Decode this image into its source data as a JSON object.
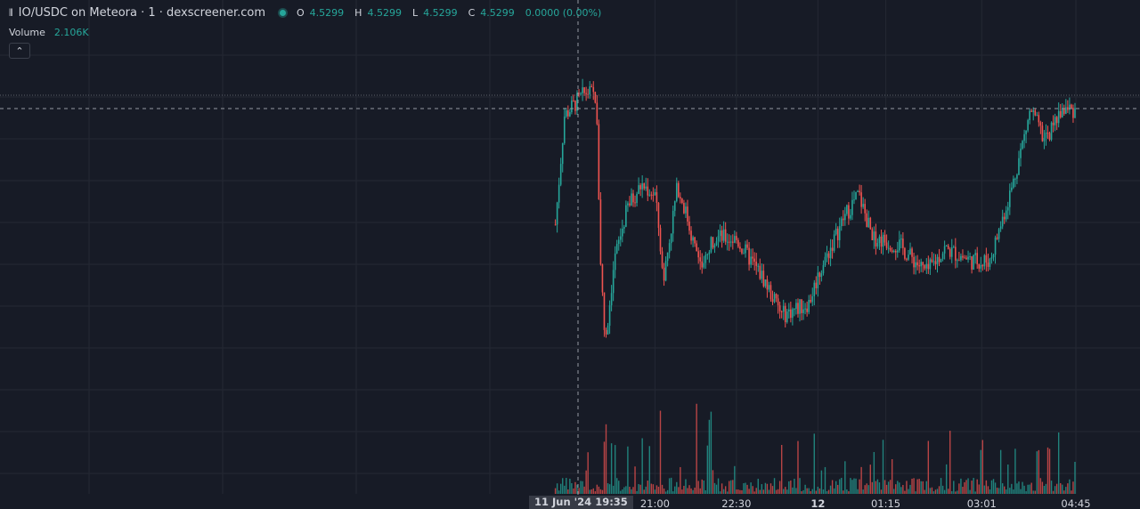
{
  "legend": {
    "icon": "candles-icon",
    "title": "IO/USDC on Meteora · 1 · dexscreener.com",
    "status_color": "#26a69a",
    "o_label": "O",
    "o_value": "4.5299",
    "h_label": "H",
    "h_value": "4.5299",
    "l_label": "L",
    "l_value": "4.5299",
    "c_label": "C",
    "c_value": "4.5299",
    "change": "0.0000 (0.00%)"
  },
  "volume_legend": {
    "label": "Volume",
    "value": "2.106K"
  },
  "collapse_button": {
    "icon": "chevron-up-icon",
    "glyph": "⌃"
  },
  "crosshair_label": "11 Jun '24  19:35",
  "colors": {
    "up": "#26a69a",
    "down": "#ef5350",
    "background": "#171b26",
    "grid": "#242834"
  },
  "chart_data": {
    "type": "candlestick",
    "pair": "IO/USDC",
    "interval": "1m",
    "x_ticks": [
      "21:00",
      "22:30",
      "12",
      "01:15",
      "03:01",
      "04:45"
    ],
    "crosshair_time": "19:35",
    "grid": true,
    "close_series_keypoints": [
      {
        "t": "19:10",
        "v": 0.42
      },
      {
        "t": "19:20",
        "v": 0.78
      },
      {
        "t": "19:35",
        "v": 0.83
      },
      {
        "t": "19:45",
        "v": 0.86
      },
      {
        "t": "19:55",
        "v": 0.84
      },
      {
        "t": "20:00",
        "v": 0.3
      },
      {
        "t": "20:05",
        "v": 0.02
      },
      {
        "t": "20:15",
        "v": 0.3
      },
      {
        "t": "20:30",
        "v": 0.48
      },
      {
        "t": "20:45",
        "v": 0.55
      },
      {
        "t": "21:00",
        "v": 0.52
      },
      {
        "t": "21:10",
        "v": 0.25
      },
      {
        "t": "21:25",
        "v": 0.55
      },
      {
        "t": "21:35",
        "v": 0.45
      },
      {
        "t": "21:50",
        "v": 0.27
      },
      {
        "t": "22:05",
        "v": 0.38
      },
      {
        "t": "22:30",
        "v": 0.37
      },
      {
        "t": "23:00",
        "v": 0.24
      },
      {
        "t": "23:20",
        "v": 0.12
      },
      {
        "t": "23:50",
        "v": 0.16
      },
      {
        "t": "00:00",
        "v": 0.25
      },
      {
        "t": "00:30",
        "v": 0.45
      },
      {
        "t": "00:45",
        "v": 0.52
      },
      {
        "t": "01:00",
        "v": 0.38
      },
      {
        "t": "01:30",
        "v": 0.35
      },
      {
        "t": "02:00",
        "v": 0.26
      },
      {
        "t": "02:20",
        "v": 0.34
      },
      {
        "t": "02:50",
        "v": 0.3
      },
      {
        "t": "03:10",
        "v": 0.3
      },
      {
        "t": "03:35",
        "v": 0.55
      },
      {
        "t": "03:55",
        "v": 0.8
      },
      {
        "t": "04:10",
        "v": 0.7
      },
      {
        "t": "04:30",
        "v": 0.8
      }
    ],
    "volume_peaks": [
      {
        "t": "20:05",
        "v": 0.95
      },
      {
        "t": "21:05",
        "v": 0.85
      },
      {
        "t": "21:45",
        "v": 0.95
      },
      {
        "t": "22:00",
        "v": 0.75
      },
      {
        "t": "01:00",
        "v": 0.55
      },
      {
        "t": "03:00",
        "v": 0.55
      },
      {
        "t": "04:15",
        "v": 0.45
      }
    ]
  }
}
